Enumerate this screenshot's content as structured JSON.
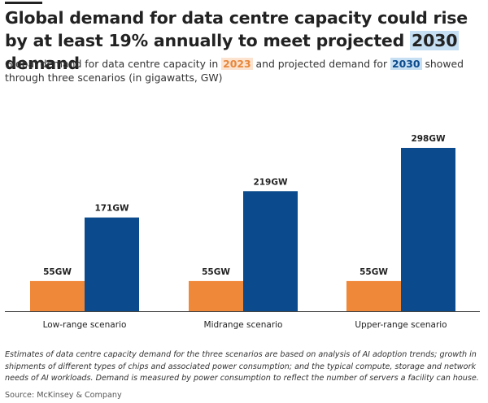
{
  "header": {
    "title_before": "Global demand for data centre capacity could rise by at least 19% annually to meet projected ",
    "title_highlight": "2030",
    "title_after": " demand",
    "subtitle_part1": "Global demand for data centre capacity in ",
    "subtitle_year1": "2023",
    "subtitle_part2": " and projected demand for ",
    "subtitle_year2": "2030",
    "subtitle_part3": " showed through three scenarios (in gigawatts, GW)"
  },
  "footer": {
    "note": "Estimates of data centre capacity demand for the three scenarios are based on analysis of AI adoption trends; growth in shipments of different types of chips and associated power consumption; and the typical compute, storage and network needs of AI workloads. Demand is measured by power consumption to reflect the number of servers a facility can house.",
    "source": "Source: McKinsey & Company"
  },
  "colors": {
    "y2023": "#f0883a",
    "y2030": "#0b4a8c",
    "axis": "#444444"
  },
  "chart_data": {
    "type": "bar",
    "title": "Global demand for data centre capacity could rise by at least 19% annually to meet projected 2030 demand",
    "categories": [
      "Low-range scenario",
      "Midrange scenario",
      "Upper-range scenario"
    ],
    "series": [
      {
        "name": "2023",
        "values": [
          55,
          55,
          55
        ],
        "labels": [
          "55GW",
          "55GW",
          "55GW"
        ]
      },
      {
        "name": "2030",
        "values": [
          171,
          219,
          298
        ],
        "labels": [
          "171GW",
          "219GW",
          "298GW"
        ]
      }
    ],
    "unit": "GW",
    "xlabel": "",
    "ylabel": "",
    "ylim": [
      0,
      300
    ],
    "grid": false,
    "legend": "none"
  }
}
